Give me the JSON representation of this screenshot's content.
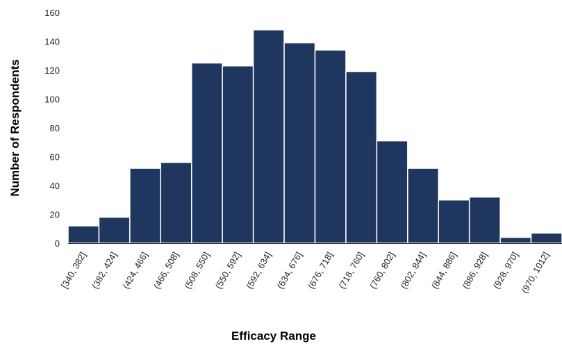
{
  "chart_data": {
    "type": "bar",
    "title": "",
    "xlabel": "Efficacy Range",
    "ylabel": "Number of Respondents",
    "categories": [
      "[340, 382]",
      "(382, 424]",
      "(424, 466]",
      "(466, 508]",
      "(508, 550]",
      "(550, 592]",
      "(592, 634]",
      "(634, 676]",
      "(676, 718]",
      "(718, 760]",
      "(760, 802]",
      "(802, 844]",
      "(844, 886]",
      "(886, 928]",
      "(928, 970]",
      "(970, 1012]"
    ],
    "values": [
      12,
      18,
      52,
      56,
      125,
      123,
      148,
      139,
      134,
      119,
      71,
      52,
      30,
      32,
      4,
      7
    ],
    "ylim": [
      0,
      160
    ],
    "yticks": [
      0,
      20,
      40,
      60,
      80,
      100,
      120,
      140,
      160
    ],
    "grid": false,
    "bar_color": "#1f365f"
  }
}
